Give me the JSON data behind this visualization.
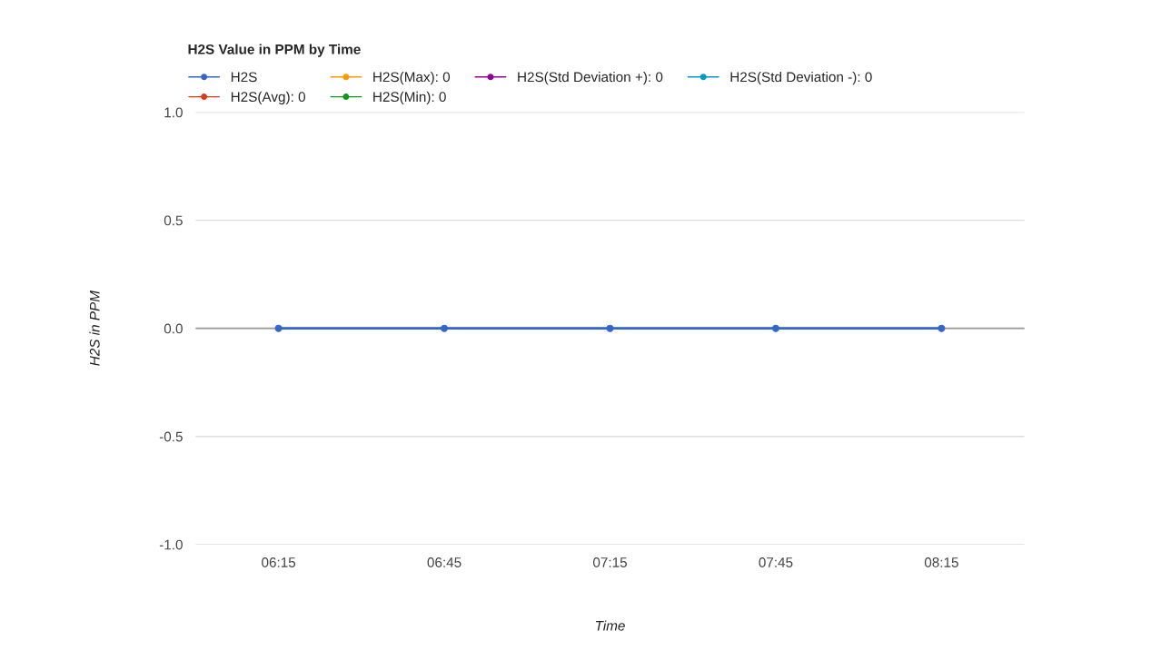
{
  "chart_data": {
    "type": "line",
    "title": "H2S Value in PPM by Time",
    "xlabel": "Time",
    "ylabel": "H2S in PPM",
    "categories": [
      "06:15",
      "06:45",
      "07:15",
      "07:45",
      "08:15"
    ],
    "series": [
      {
        "name": "H2S",
        "color": "#3366cc",
        "values": [
          0,
          0,
          0,
          0,
          0
        ]
      },
      {
        "name": "H2S(Avg): 0",
        "color": "#dc3912",
        "values": [
          null,
          null,
          null,
          null,
          null
        ]
      },
      {
        "name": "H2S(Max): 0",
        "color": "#ff9900",
        "values": [
          null,
          null,
          null,
          null,
          null
        ]
      },
      {
        "name": "H2S(Min): 0",
        "color": "#109618",
        "values": [
          null,
          null,
          null,
          null,
          null
        ]
      },
      {
        "name": "H2S(Std Deviation +): 0",
        "color": "#990099",
        "values": [
          null,
          null,
          null,
          null,
          null
        ]
      },
      {
        "name": "H2S(Std Deviation -): 0",
        "color": "#0099c6",
        "values": [
          null,
          null,
          null,
          null,
          null
        ]
      }
    ],
    "ylim": [
      -1.0,
      1.0
    ],
    "yticks": [
      {
        "value": -1.0,
        "label": "-1.0"
      },
      {
        "value": -0.5,
        "label": "-0.5"
      },
      {
        "value": 0.0,
        "label": "0.0"
      },
      {
        "value": 0.5,
        "label": "0.5"
      },
      {
        "value": 1.0,
        "label": "1.0"
      }
    ],
    "ref_lines": [
      {
        "axis": "y",
        "value": 0,
        "color": "#999999"
      }
    ],
    "grid": "y",
    "legend": "top left",
    "marker": "circle",
    "line_style": "solid"
  }
}
